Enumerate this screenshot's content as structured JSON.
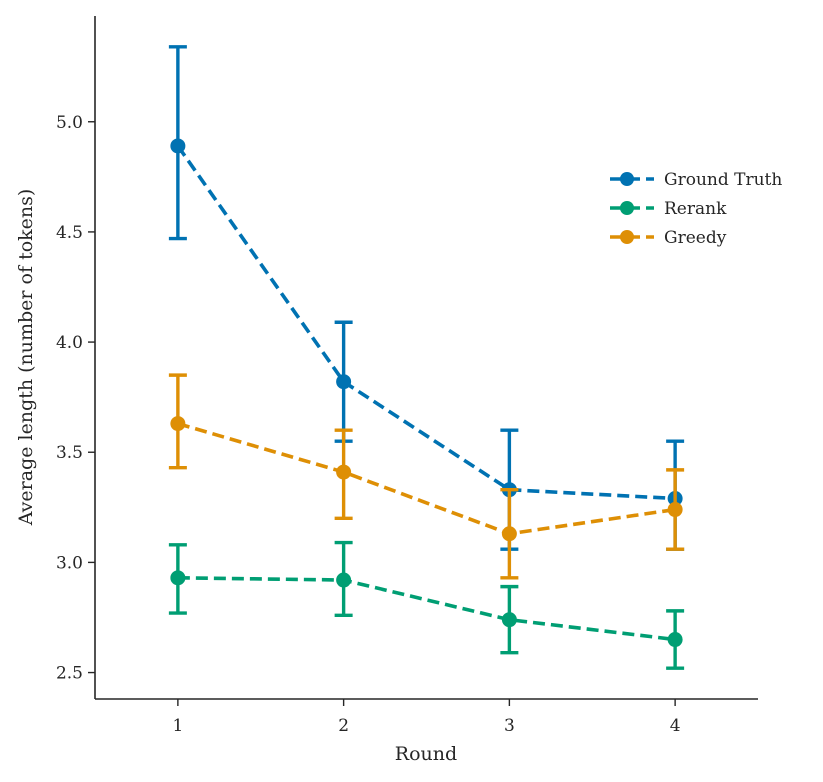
{
  "chart_data": {
    "type": "line",
    "title": "",
    "xlabel": "Round",
    "ylabel": "Average length (number of tokens)",
    "categories": [
      1,
      2,
      3,
      4
    ],
    "x_tick_labels": [
      "1",
      "2",
      "3",
      "4"
    ],
    "xlim": [
      0.5,
      4.5
    ],
    "ylim": [
      2.38,
      5.48
    ],
    "y_ticks": [
      2.5,
      3.0,
      3.5,
      4.0,
      4.5,
      5.0
    ],
    "y_tick_labels": [
      "2.5",
      "3.0",
      "3.5",
      "4.0",
      "4.5",
      "5.0"
    ],
    "grid": false,
    "legend_position": "upper-right",
    "line_style": "dashed",
    "series": [
      {
        "name": "Ground Truth",
        "color": "#0072b2",
        "values": [
          4.89,
          3.82,
          3.33,
          3.29
        ],
        "err_low": [
          4.47,
          3.55,
          3.06,
          3.06
        ],
        "err_high": [
          5.34,
          4.09,
          3.6,
          3.55
        ]
      },
      {
        "name": "Rerank",
        "color": "#009e73",
        "values": [
          2.93,
          2.92,
          2.74,
          2.65
        ],
        "err_low": [
          2.77,
          2.76,
          2.59,
          2.52
        ],
        "err_high": [
          3.08,
          3.09,
          2.89,
          2.78
        ]
      },
      {
        "name": "Greedy",
        "color": "#de8f05",
        "values": [
          3.63,
          3.41,
          3.13,
          3.24
        ],
        "err_low": [
          3.43,
          3.2,
          2.93,
          3.06
        ],
        "err_high": [
          3.85,
          3.6,
          3.33,
          3.42
        ]
      }
    ]
  }
}
